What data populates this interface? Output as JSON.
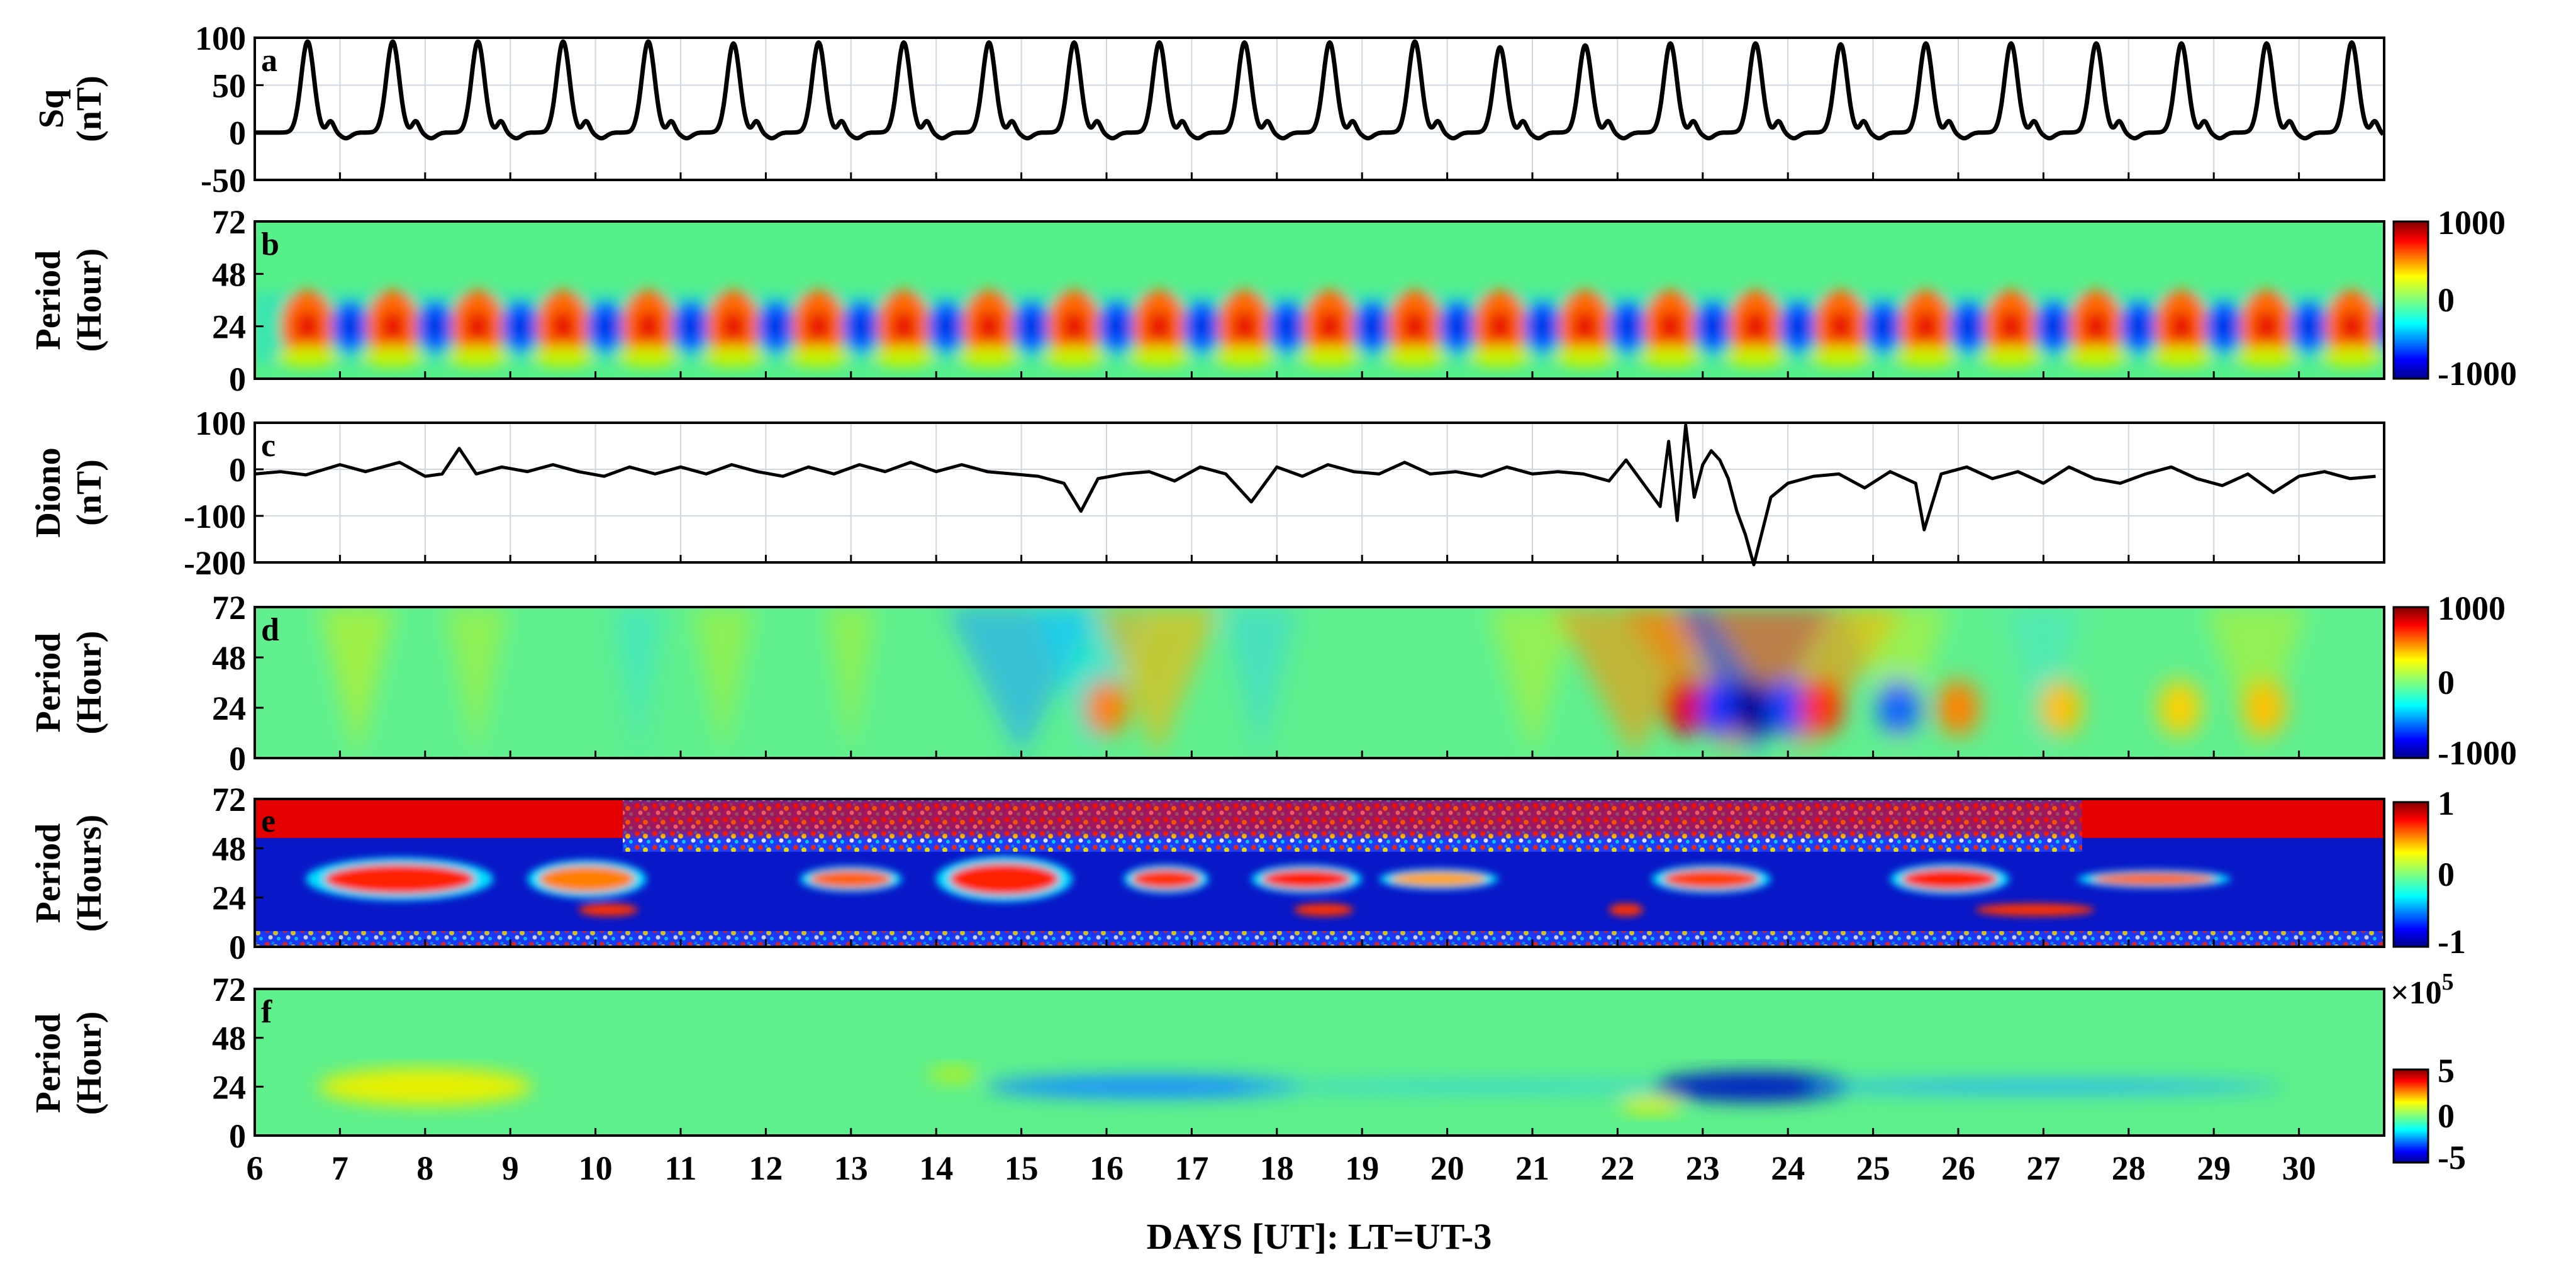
{
  "figure": {
    "xlabel": "DAYS [UT]: LT=UT-3",
    "x_ticks": [
      "6",
      "7",
      "8",
      "9",
      "10",
      "11",
      "12",
      "13",
      "14",
      "15",
      "16",
      "17",
      "18",
      "19",
      "20",
      "21",
      "22",
      "23",
      "24",
      "25",
      "26",
      "27",
      "28",
      "29",
      "30"
    ]
  },
  "chart_data": [
    {
      "type": "line",
      "panel": "a",
      "ylabel_top": "Sq",
      "ylabel_bottom": "(nT)",
      "ylim": [
        -50,
        100
      ],
      "yticks": [
        "100",
        "50",
        "0",
        "-50"
      ],
      "xlim": [
        6,
        31
      ],
      "grid": true,
      "series_color": "#000000",
      "peak_days": [
        6.62,
        7.62,
        8.62,
        9.62,
        10.62,
        11.62,
        12.62,
        13.62,
        14.62,
        15.62,
        16.62,
        17.62,
        18.62,
        19.62,
        20.62,
        21.62,
        22.62,
        23.62,
        24.62,
        25.62,
        26.62,
        27.62,
        28.62,
        29.62,
        30.62
      ],
      "peak_values": [
        96,
        96,
        96,
        96,
        96,
        94,
        95,
        95,
        95,
        95,
        95,
        95,
        95,
        96,
        90,
        92,
        94,
        94,
        93,
        94,
        94,
        94,
        94,
        94,
        95
      ],
      "baseline": 0
    },
    {
      "type": "heatmap",
      "panel": "b",
      "ylabel_top": "Period",
      "ylabel_bottom": "(Hour)",
      "ylim": [
        0,
        72
      ],
      "yticks": [
        "72",
        "48",
        "24",
        "0"
      ],
      "colorbar_ticks": [
        "1000",
        "0",
        "-1000"
      ],
      "colorbar_range": [
        -1000,
        1000
      ]
    },
    {
      "type": "line",
      "panel": "c",
      "ylabel_top": "Diono",
      "ylabel_bottom": "(nT)",
      "ylim": [
        -200,
        100
      ],
      "yticks": [
        "100",
        "0",
        "-100",
        "-200"
      ],
      "xlim": [
        6,
        31
      ],
      "grid": true,
      "series_color": "#000000",
      "x": [
        6.0,
        6.3,
        6.6,
        7.0,
        7.3,
        7.7,
        8.0,
        8.2,
        8.4,
        8.6,
        8.9,
        9.2,
        9.5,
        9.8,
        10.1,
        10.4,
        10.7,
        11.0,
        11.3,
        11.6,
        11.9,
        12.2,
        12.5,
        12.8,
        13.1,
        13.4,
        13.7,
        14.0,
        14.3,
        14.6,
        14.9,
        15.2,
        15.5,
        15.7,
        15.9,
        16.2,
        16.5,
        16.8,
        17.1,
        17.4,
        17.7,
        18.0,
        18.3,
        18.6,
        18.9,
        19.2,
        19.5,
        19.8,
        20.1,
        20.4,
        20.7,
        21.0,
        21.3,
        21.6,
        21.9,
        22.1,
        22.3,
        22.5,
        22.6,
        22.7,
        22.8,
        22.9,
        23.0,
        23.1,
        23.2,
        23.3,
        23.4,
        23.5,
        23.6,
        23.8,
        24.0,
        24.3,
        24.6,
        24.9,
        25.2,
        25.5,
        25.6,
        25.8,
        26.1,
        26.4,
        26.7,
        27.0,
        27.3,
        27.6,
        27.9,
        28.2,
        28.5,
        28.8,
        29.1,
        29.4,
        29.7,
        30.0,
        30.3,
        30.6,
        30.9
      ],
      "y": [
        -10,
        -5,
        -12,
        10,
        -5,
        15,
        -15,
        -10,
        45,
        -10,
        5,
        -5,
        10,
        -5,
        -15,
        5,
        -10,
        5,
        -10,
        10,
        -5,
        -15,
        5,
        -10,
        10,
        -5,
        15,
        -5,
        10,
        -5,
        -10,
        -15,
        -30,
        -90,
        -20,
        -10,
        -5,
        -25,
        5,
        -10,
        -70,
        5,
        -15,
        10,
        -5,
        -10,
        15,
        -10,
        -5,
        -15,
        5,
        -10,
        -5,
        -10,
        -25,
        20,
        -30,
        -80,
        60,
        -110,
        95,
        -60,
        10,
        40,
        20,
        -20,
        -90,
        -140,
        -205,
        -60,
        -30,
        -15,
        -10,
        -40,
        -5,
        -30,
        -130,
        -10,
        5,
        -20,
        -5,
        -30,
        5,
        -20,
        -30,
        -10,
        5,
        -20,
        -35,
        -10,
        -50,
        -15,
        -5,
        -20,
        -15
      ]
    },
    {
      "type": "heatmap",
      "panel": "d",
      "ylabel_top": "Period",
      "ylabel_bottom": "(Hour)",
      "ylim": [
        0,
        72
      ],
      "yticks": [
        "72",
        "48",
        "24",
        "0"
      ],
      "colorbar_ticks": [
        "1000",
        "0",
        "-1000"
      ],
      "colorbar_range": [
        -1000,
        1000
      ]
    },
    {
      "type": "heatmap",
      "panel": "e",
      "ylabel_top": "Period",
      "ylabel_bottom": "(Hours)",
      "ylim": [
        0,
        72
      ],
      "yticks": [
        "72",
        "48",
        "24",
        "0"
      ],
      "colorbar_ticks": [
        "1",
        "0",
        "-1"
      ],
      "colorbar_range": [
        -1,
        1
      ]
    },
    {
      "type": "heatmap",
      "panel": "f",
      "ylabel_top": "Period",
      "ylabel_bottom": "(Hour)",
      "ylim": [
        0,
        72
      ],
      "yticks": [
        "72",
        "48",
        "24",
        "0"
      ],
      "colorbar_ticks": [
        "5",
        "0",
        "-5"
      ],
      "colorbar_multiplier": "×10",
      "colorbar_exponent": "5",
      "colorbar_range": [
        -5,
        5
      ]
    }
  ],
  "colormap": [
    "#00008f",
    "#0000ff",
    "#007fff",
    "#00ffff",
    "#7fff7f",
    "#ffff00",
    "#ff7f00",
    "#ff0000",
    "#7f0000"
  ]
}
